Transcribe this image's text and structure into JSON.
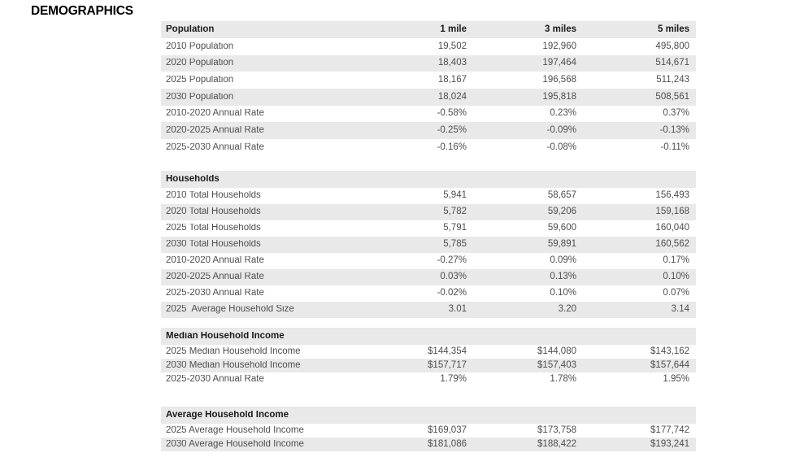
{
  "page": {
    "title": "DEMOGRAPHICS"
  },
  "colors": {
    "row_alt_background": "#e9e9e9",
    "section_header_background": "#e9e9e9",
    "body_text": "#4e4e4e",
    "heading_text": "#1b1b1b",
    "title_text": "#000000"
  },
  "table": {
    "column_headers": [
      "1 mile",
      "3 miles",
      "5 miles"
    ],
    "sections": [
      {
        "title": "Population",
        "rows": [
          {
            "label": "2010 Population",
            "values": [
              "19,502",
              "192,960",
              "495,800"
            ]
          },
          {
            "label": "2020 Population",
            "values": [
              "18,403",
              "197,464",
              "514,671"
            ]
          },
          {
            "label": "2025 Population",
            "values": [
              "18,167",
              "196,568",
              "511,243"
            ]
          },
          {
            "label": "2030 Population",
            "values": [
              "18,024",
              "195,818",
              "508,561"
            ]
          },
          {
            "label": "2010-2020 Annual Rate",
            "values": [
              "-0.58%",
              "0.23%",
              "0.37%"
            ]
          },
          {
            "label": "2020-2025 Annual Rate",
            "values": [
              "-0.25%",
              "-0.09%",
              "-0.13%"
            ]
          },
          {
            "label": "2025-2030 Annual Rate",
            "values": [
              "-0.16%",
              "-0.08%",
              "-0.11%"
            ]
          }
        ]
      },
      {
        "title": "Households",
        "rows": [
          {
            "label": "2010 Total Households",
            "values": [
              "5,941",
              "58,657",
              "156,493"
            ]
          },
          {
            "label": "2020 Total Households",
            "values": [
              "5,782",
              "59,206",
              "159,168"
            ]
          },
          {
            "label": "2025 Total Households",
            "values": [
              "5,791",
              "59,600",
              "160,040"
            ]
          },
          {
            "label": "2030 Total Households",
            "values": [
              "5,785",
              "59,891",
              "160,562"
            ]
          },
          {
            "label": "2010-2020 Annual Rate",
            "values": [
              "-0.27%",
              "0.09%",
              "0.17%"
            ]
          },
          {
            "label": "2020-2025 Annual Rate",
            "values": [
              "0.03%",
              "0.13%",
              "0.10%"
            ]
          },
          {
            "label": "2025-2030 Annual Rate",
            "values": [
              "-0.02%",
              "0.10%",
              "0.07%"
            ]
          },
          {
            "label": "2025  Average Household Size",
            "values": [
              "3.01",
              "3.20",
              "3.14"
            ]
          }
        ]
      },
      {
        "title": "Median Household Income",
        "rows": [
          {
            "label": "2025 Median Household Income",
            "values": [
              "$144,354",
              "$144,080",
              "$143,162"
            ]
          },
          {
            "label": "2030 Median Household Income",
            "values": [
              "$157,717",
              "$157,403",
              "$157,644"
            ]
          },
          {
            "label": "2025-2030 Annual Rate",
            "values": [
              "1.79%",
              "1.78%",
              "1.95%"
            ]
          }
        ]
      },
      {
        "title": "Average Household Income",
        "rows": [
          {
            "label": "2025 Average Household Income",
            "values": [
              "$169,037",
              "$173,758",
              "$177,742"
            ]
          },
          {
            "label": "2030 Average Household Income",
            "values": [
              "$181,086",
              "$188,422",
              "$193,241"
            ]
          }
        ]
      }
    ]
  }
}
